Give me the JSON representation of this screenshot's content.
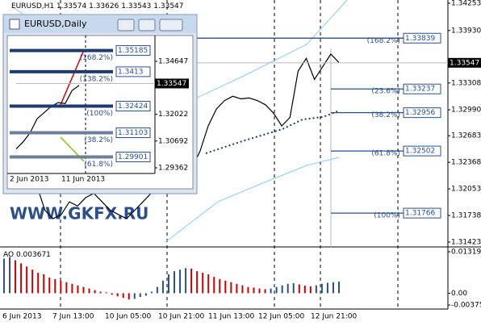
{
  "chart_data": [
    {
      "type": "line",
      "title": "EURUSD,H1",
      "ohlc": [
        1.33574,
        1.33626,
        1.33543,
        1.33547
      ],
      "values": [
        1.334,
        1.332,
        1.329,
        1.325,
        1.321,
        1.318,
        1.317,
        1.3175,
        1.319,
        1.3185,
        1.3195,
        1.32,
        1.319,
        1.318,
        1.3175,
        1.317,
        1.318,
        1.319,
        1.32,
        1.321,
        1.3225,
        1.324,
        1.326,
        1.323,
        1.325,
        1.328,
        1.33,
        1.331,
        1.3315,
        1.3312,
        1.3313,
        1.331,
        1.3305,
        1.3295,
        1.328,
        1.329,
        1.3345,
        1.336,
        1.3335,
        1.335,
        1.3365,
        1.3355
      ],
      "color": "#000000",
      "ylim": [
        1.31375,
        1.34291
      ],
      "yticks": [
        1.34253,
        {
          "value": 1.3393,
          "label": "1.33930"
        },
        1.33308,
        {
          "value": 1.3299,
          "label": "1.32990"
        },
        1.32683,
        1.32368,
        1.32053,
        1.31738,
        1.31423
      ],
      "last_price": 1.33547,
      "fib_levels": [
        {
          "label": "(168.2%)",
          "price": 1.33839
        },
        {
          "label": "(23.6%)",
          "price": 1.33237
        },
        {
          "label": "(38.2%)",
          "price": 1.32956
        },
        {
          "label": "(61.8%)",
          "price": 1.32502
        },
        {
          "label": "(100%)",
          "price": 1.31766
        }
      ],
      "x_labels": [
        "6 Jun 2013",
        "7 Jun 13:00",
        "10 Jun 05:00",
        "10 Jun 21:00",
        "11 Jun 13:00",
        "12 Jun 05:00",
        "12 Jun 21:00"
      ],
      "watermark": "WWW.GKFX.RU"
    },
    {
      "type": "histogram",
      "title": "AO",
      "last_value": 0.003671,
      "values": [
        0.011,
        0.0115,
        0.0105,
        0.0095,
        0.0085,
        0.0075,
        0.0065,
        0.006,
        0.005,
        0.0045,
        0.004,
        0.0035,
        0.003,
        0.0025,
        0.002,
        0.0015,
        0.001,
        0.0005,
        0.0003,
        -0.0005,
        -0.001,
        -0.0015,
        -0.002,
        -0.0018,
        -0.0012,
        -0.0008,
        0.0005,
        0.002,
        0.004,
        0.006,
        0.007,
        0.0075,
        0.008,
        0.0078,
        0.007,
        0.0065,
        0.006,
        0.0052,
        0.0045,
        0.004,
        0.0035,
        0.003,
        0.0025,
        0.002,
        0.0018,
        0.0015,
        0.0013,
        0.0015,
        0.002,
        0.0025,
        0.003,
        0.0032,
        0.0028,
        0.0024,
        0.0022,
        0.0025,
        0.003,
        0.0033,
        0.0035,
        0.003671
      ],
      "ylim": [
        -0.00504,
        0.01447
      ],
      "yticks": [
        0.013191,
        {
          "value": 0,
          "label": "0.00"
        },
        -0.003753
      ]
    },
    {
      "type": "line",
      "title": "EURUSD,Daily",
      "values": [
        1.303,
        1.3065,
        1.311,
        1.318,
        1.321,
        1.324,
        1.326,
        1.3255,
        1.332,
        1.3345
      ],
      "color": "#000000",
      "ylim": [
        1.29082,
        1.35608
      ],
      "yticks": [
        1.34647,
        1.32022,
        1.30692,
        1.29362
      ],
      "last_price": 1.33547,
      "fib_levels": [
        {
          "label": "(168.2%)",
          "price": 1.35185
        },
        {
          "label": "(138.2%)",
          "price": 1.3413
        },
        {
          "label": "(100%)",
          "price": 1.32424
        },
        {
          "label": "(38.2%)",
          "price": 1.31103
        },
        {
          "label": "(61.8%)",
          "price": 1.29901
        }
      ],
      "x_labels": [
        "2 Jun 2013",
        "11 Jun 2013"
      ]
    }
  ]
}
